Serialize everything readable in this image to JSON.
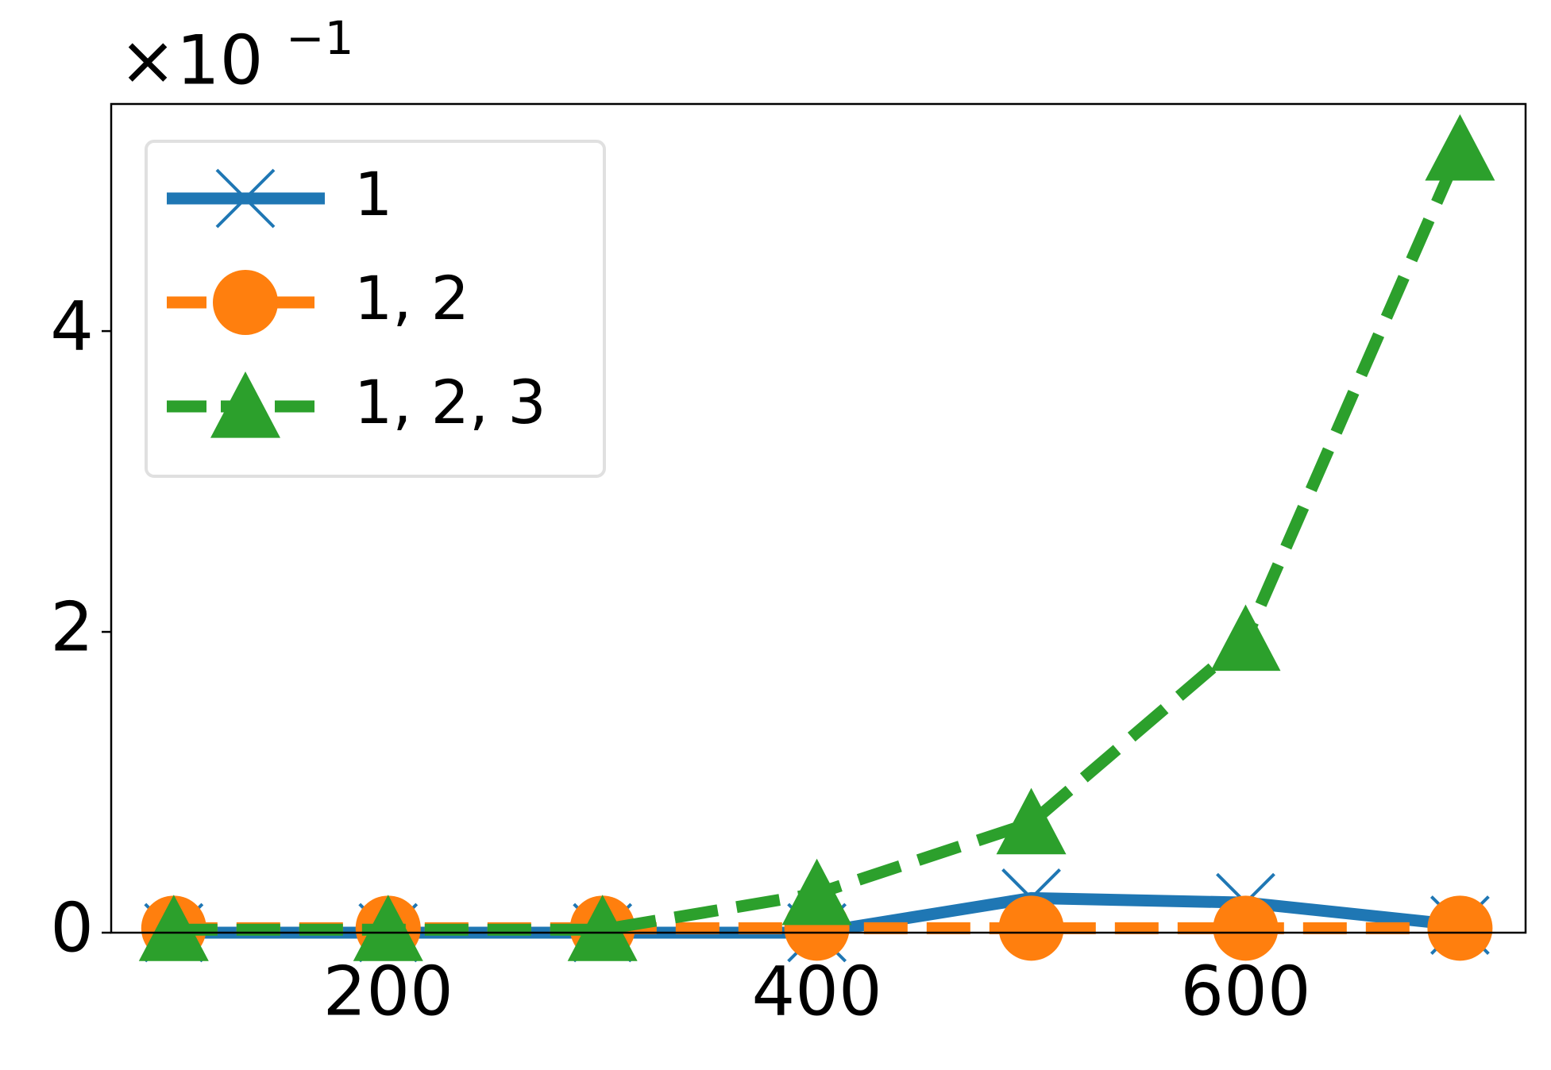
{
  "chart_data": {
    "type": "line",
    "y_offset_label": "×10",
    "y_offset_exponent": "−1",
    "x": [
      100,
      200,
      300,
      400,
      500,
      600,
      700
    ],
    "series": [
      {
        "name": "1",
        "color": "#1f77b4",
        "marker": "x",
        "dash": "solid",
        "values": [
          0.0,
          0.0,
          0.0,
          0.0,
          0.23,
          0.2,
          0.05
        ]
      },
      {
        "name": "1, 2",
        "color": "#ff7f0e",
        "marker": "circle",
        "dash": "dashed",
        "values": [
          0.03,
          0.03,
          0.03,
          0.03,
          0.03,
          0.03,
          0.03
        ]
      },
      {
        "name": "1, 2, 3",
        "color": "#2ca02c",
        "marker": "triangle",
        "dash": "dashed",
        "values": [
          0.02,
          0.02,
          0.02,
          0.26,
          0.73,
          1.95,
          5.21
        ]
      }
    ],
    "xlim": [
      70.8,
      730.6
    ],
    "ylim": [
      0,
      5.51
    ],
    "xticks": [
      200,
      400,
      600
    ],
    "yticks": [
      0,
      2,
      4
    ],
    "grid": false,
    "legend": "upper left"
  }
}
